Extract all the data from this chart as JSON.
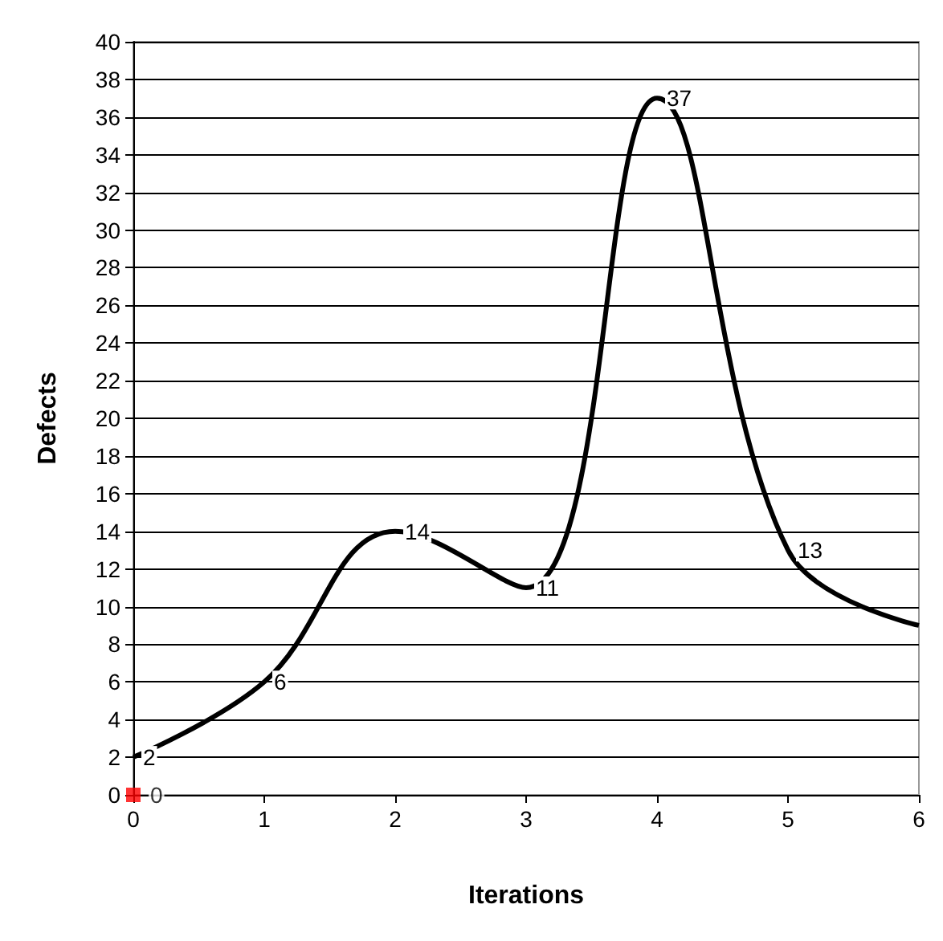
{
  "chart_data": {
    "type": "line",
    "xlabel": "Iterations",
    "ylabel": "Defects",
    "xlim": [
      0,
      6
    ],
    "xticks": [
      0,
      1,
      2,
      3,
      4,
      5,
      6
    ],
    "ylim": [
      0,
      40
    ],
    "yticks": [
      0,
      2,
      4,
      6,
      8,
      10,
      12,
      14,
      16,
      18,
      20,
      22,
      24,
      26,
      28,
      30,
      32,
      34,
      36,
      38,
      40
    ],
    "grid": "y",
    "series": [
      {
        "color": "#000000",
        "marker": "none",
        "line_style": "solid",
        "x": [
          0,
          1,
          2,
          3,
          4,
          5,
          6
        ],
        "values": [
          2,
          6,
          14,
          11,
          37,
          13,
          9
        ],
        "value_labels": [
          "2",
          "6",
          "14",
          "11",
          "37",
          "13",
          null
        ]
      },
      {
        "type": "scatter",
        "color": "#ff0000",
        "marker": "square",
        "x": [
          0
        ],
        "values": [
          0
        ],
        "value_labels": [
          "0"
        ]
      }
    ]
  }
}
